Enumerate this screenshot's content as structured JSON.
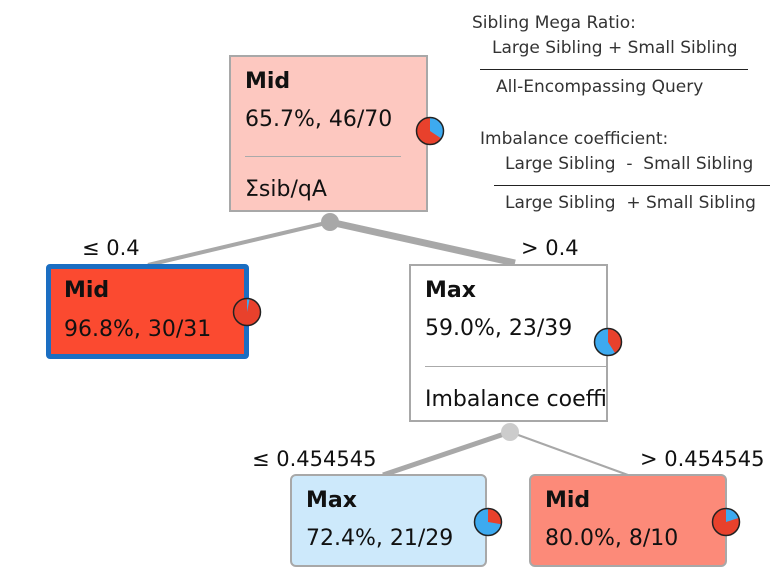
{
  "legend": {
    "mega_title": "Sibling Mega Ratio:",
    "mega_numerator": "Large Sibling + Small Sibling",
    "mega_denominator": "All-Encompassing Query",
    "imb_title": "Imbalance coefficient:",
    "imb_numerator": "Large Sibling  -  Small Sibling",
    "imb_denominator": "Large Sibling  + Small Sibling"
  },
  "colors": {
    "mid": "#e8412c",
    "max": "#3daaf0",
    "edge": "#a8a8a8",
    "selected_border": "#1b6ec2"
  },
  "tree": {
    "root": {
      "class": "Mid",
      "stat": "65.7%, 46/70",
      "split": "Σsib/qA",
      "fraction": 0.657,
      "bg": "#fdc8c0"
    },
    "left": {
      "class": "Mid",
      "stat": "96.8%, 30/31",
      "threshold": "≤ 0.4",
      "fraction": 0.968,
      "bg": "#fb4a30"
    },
    "right": {
      "class": "Max",
      "stat": "59.0%, 23/39",
      "split": "Imbalance coeffi",
      "threshold": "> 0.4",
      "fraction": 0.59,
      "bg": "#ffffff"
    },
    "right_left": {
      "class": "Max",
      "stat": "72.4%, 21/29",
      "threshold": "≤ 0.454545",
      "fraction": 0.724,
      "bg": "#cde9fb"
    },
    "right_right": {
      "class": "Mid",
      "stat": "80.0%, 8/10",
      "threshold": "> 0.454545",
      "fraction": 0.8,
      "bg": "#fc8a79"
    }
  }
}
